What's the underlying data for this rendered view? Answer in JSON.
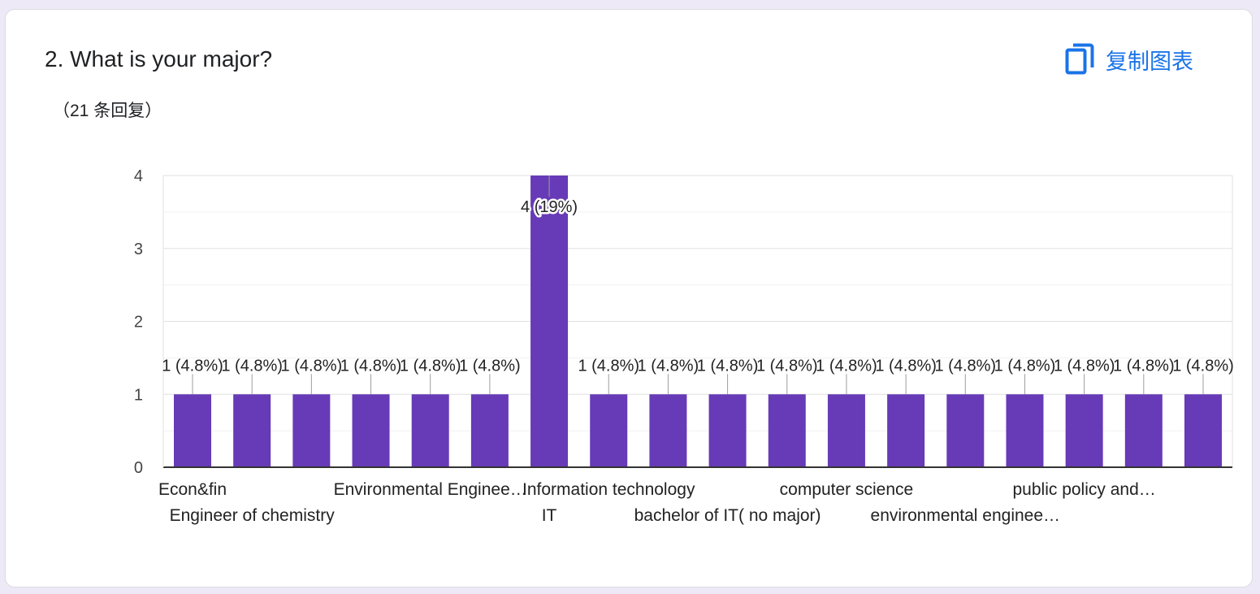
{
  "question": {
    "title": "2. What is your major?",
    "response_count": "（21 条回复）"
  },
  "actions": {
    "copy_chart_label": "复制图表",
    "copy_chart_icon": "copy-icon"
  },
  "colors": {
    "bar": "#673ab7",
    "accent": "#1a73e8"
  },
  "chart_data": {
    "type": "bar",
    "title": "2. What is your major?",
    "xlabel": "",
    "ylabel": "",
    "ylim": [
      0,
      4
    ],
    "yticks": [
      0,
      1,
      2,
      3,
      4
    ],
    "grid": true,
    "categories": [
      "Econ&fin",
      "Engineer of chemistry",
      "",
      "",
      "Environmental Enginee…",
      "",
      "IT",
      "Information technology",
      "",
      "bachelor of IT( no major)",
      "",
      "computer science",
      "",
      "environmental enginee…",
      "",
      "public policy and…",
      "",
      ""
    ],
    "values": [
      1,
      1,
      1,
      1,
      1,
      1,
      4,
      1,
      1,
      1,
      1,
      1,
      1,
      1,
      1,
      1,
      1,
      1
    ],
    "data_labels": [
      "1 (4.8%)",
      "1 (4.8%)",
      "1 (4.8%)",
      "1 (4.8%)",
      "1 (4.8%)",
      "1 (4.8%)",
      "4 (19%)",
      "1 (4.8%)",
      "1 (4.8%)",
      "1 (4.8%)",
      "1 (4.8%)",
      "1 (4.8%)",
      "1 (4.8%)",
      "1 (4.8%)",
      "1 (4.8%)",
      "1 (4.8%)",
      "1 (4.8%)",
      "1 (4.8%)"
    ]
  }
}
